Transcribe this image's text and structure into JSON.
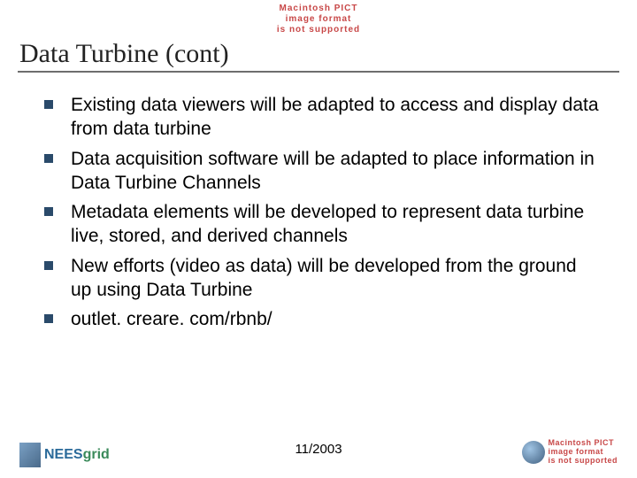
{
  "banner": {
    "line1": "Macintosh PICT",
    "line2": "image format",
    "line3": "is not supported"
  },
  "title": "Data Turbine (cont)",
  "bullets": [
    "Existing data viewers will be adapted to access and display data from data turbine",
    "Data acquisition software will be adapted to place information in Data Turbine Channels",
    "Metadata elements will be developed to represent data turbine live, stored, and derived channels",
    "New efforts (video as data) will be developed from the ground up using Data Turbine",
    "outlet. creare. com/rbnb/"
  ],
  "footer_date": "11/2003",
  "logo_left": {
    "part1": "NEES",
    "part2": "grid"
  },
  "logo_right": {
    "line1": "Macintosh PICT",
    "line2": "image format",
    "line3": "is not supported"
  },
  "colors": {
    "bullet_marker": "#2a4a6a",
    "title_color": "#222222",
    "banner_color": "#c84848"
  }
}
